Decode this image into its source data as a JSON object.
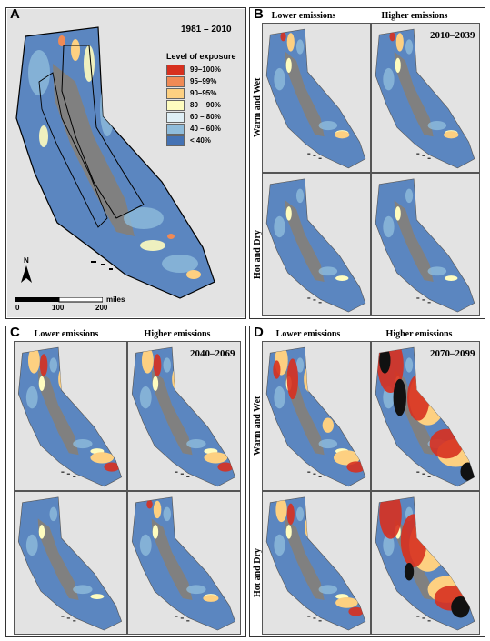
{
  "panels": {
    "A": {
      "letter": "A",
      "period": "1981 – 2010",
      "legend": {
        "title": "Level of exposure",
        "items": [
          {
            "label": "99–100%",
            "color": "#d7301f"
          },
          {
            "label": "95–99%",
            "color": "#f08a55"
          },
          {
            "label": "90–95%",
            "color": "#fdd081"
          },
          {
            "label": "80 – 90%",
            "color": "#fefcbf"
          },
          {
            "label": "60 – 80%",
            "color": "#dfeff6"
          },
          {
            "label": "40 – 60%",
            "color": "#8fbcdb"
          },
          {
            "label": "< 40%",
            "color": "#4472b4"
          }
        ]
      },
      "north": "N",
      "scale": {
        "ticks": [
          "0",
          "100",
          "200"
        ],
        "unit": "miles"
      }
    },
    "B": {
      "letter": "B",
      "period": "2010–2039",
      "col1": "Lower emissions",
      "col2": "Higher emissions",
      "row1": "Warm and Wet",
      "row2": "Hot and Dry"
    },
    "C": {
      "letter": "C",
      "period": "2040–2069",
      "col1": "Lower emissions",
      "col2": "Higher emissions"
    },
    "D": {
      "letter": "D",
      "period": "2070–2099",
      "col1": "Lower emissions",
      "col2": "Higher emissions",
      "row1": "Warm and Wet",
      "row2": "Hot and Dry"
    }
  },
  "colors": {
    "background": "#e3e3e3",
    "valley": "#808080",
    "base": "#5b86c0",
    "exposure_99": "#d7301f",
    "exposure_95": "#f08a55",
    "exposure_90": "#fdd081",
    "extreme": "#111111"
  }
}
